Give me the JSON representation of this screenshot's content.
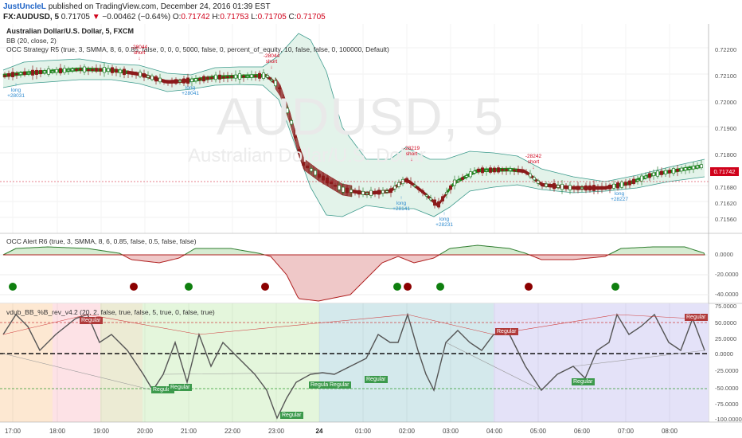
{
  "header": {
    "author": "JustUncleL",
    "published_text": "published on TradingView.com, December 24, 2016 01:39 EST",
    "symbol": "FX:AUDUSD, 5",
    "last_price": "0.71705",
    "change": "−0.00462 (−0.64%)",
    "o_label": "O:",
    "o_value": "0.71742",
    "h_label": "H:",
    "h_value": "0.71753",
    "l_label": "L:",
    "l_value": "0.71705",
    "c_label": "C:",
    "c_value": "0.71705"
  },
  "main_pane": {
    "title": "Australian Dollar/U.S. Dollar, 5, FXCM",
    "bb_label": "BB (20, close, 2)",
    "strategy_label": "OCC Strategy R5 (true, 3, SMMA, 8, 6, 0.85, false, 0, 0, 0, 5000, false, 0, percent_of_equity, 10, false, false, 0, 100000, Default)",
    "watermark_symbol": "AUDUSD, 5",
    "watermark_name": "Australian Dollar/U.S. Dollar",
    "current_price_tag": "0.71742",
    "price_axis": [
      "0.72200",
      "0.72100",
      "0.72000",
      "0.71900",
      "0.71800",
      "0.71680",
      "0.71620",
      "0.71560"
    ]
  },
  "signals": [
    {
      "kind": "short",
      "value": "-28044",
      "text": "short"
    },
    {
      "kind": "short",
      "value": "-28219",
      "text": "short"
    },
    {
      "kind": "short",
      "value": "-28242",
      "text": "short"
    },
    {
      "kind": "long",
      "value": "+28041",
      "text": "long"
    },
    {
      "kind": "long",
      "value": "+28141",
      "text": "long"
    },
    {
      "kind": "long",
      "value": "+28231",
      "text": "long"
    },
    {
      "kind": "long",
      "value": "+28227",
      "text": "long"
    },
    {
      "kind": "long",
      "value": "+28031",
      "text": "long"
    }
  ],
  "alert_pane": {
    "label": "OCC Alert R6 (true, 3, SMMA, 8, 6, 0.85, false, 0.5, false, false)",
    "axis": [
      "0.0000",
      "-20.0000",
      "-40.0000"
    ],
    "dot_colors": [
      "#0f7f0f",
      "#8b0000",
      "#0f7f0f",
      "#8b0000",
      "#0f7f0f",
      "#8b0000",
      "#0f7f0f",
      "#8b0000",
      "#0f7f0f"
    ]
  },
  "bb_pane": {
    "label": "vdub_BB_%B_rev_v4.2 (20, 2, false, true, false, 5, true, 0, false, true)",
    "axis": [
      "75.0000",
      "50.0000",
      "25.0000",
      "0.0000",
      "-25.0000",
      "-50.0000",
      "-75.0000",
      "-100.0000"
    ],
    "regular_label": "Regular"
  },
  "time_axis": [
    "17:00",
    "18:00",
    "19:00",
    "20:00",
    "21:00",
    "22:00",
    "23:00",
    "24",
    "01:00",
    "02:00",
    "03:00",
    "04:00",
    "05:00",
    "06:00",
    "07:00",
    "08:00"
  ],
  "colors": {
    "up_candle": "#2e7d32",
    "down_candle": "#8b1a1a",
    "bull_ribbon": "#1e8c1e",
    "bear_ribbon": "#8b1a1a",
    "bb_line": "#3c9a8c",
    "accent_red": "#d0021b",
    "accent_blue": "#2e8bd0"
  }
}
